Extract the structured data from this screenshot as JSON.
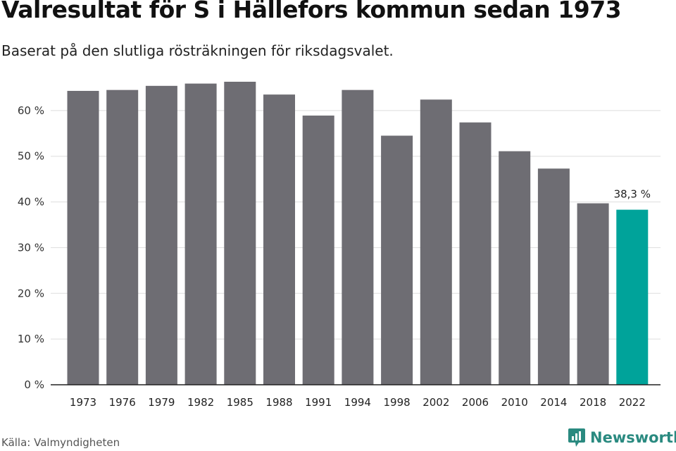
{
  "title": "Valresultat för S i Hällefors kommun sedan 1973",
  "subtitle": "Baserat på den slutliga rösträkningen för riksdagsvalet.",
  "source": "Källa: Valmyndigheten",
  "brand": "Newsworthy",
  "colors": {
    "bar": "#6e6d73",
    "highlight": "#00a39a",
    "grid": "#dddddd",
    "axis": "#222222",
    "brand": "#2a8a80"
  },
  "chart_data": {
    "type": "bar",
    "categories": [
      "1973",
      "1976",
      "1979",
      "1982",
      "1985",
      "1988",
      "1991",
      "1994",
      "1998",
      "2002",
      "2006",
      "2010",
      "2014",
      "2018",
      "2022"
    ],
    "values": [
      64.3,
      64.5,
      65.4,
      65.9,
      66.3,
      63.5,
      58.9,
      64.5,
      54.5,
      62.4,
      57.4,
      51.1,
      47.3,
      39.7,
      38.3
    ],
    "highlight_index": 14,
    "data_labels": [
      {
        "index": 14,
        "text": "38,3 %"
      }
    ],
    "y_ticks": [
      0,
      10,
      20,
      30,
      40,
      50,
      60
    ],
    "y_tick_labels": [
      "0 %",
      "10 %",
      "20 %",
      "30 %",
      "40 %",
      "50 %",
      "60 %"
    ],
    "ylim": [
      0,
      70
    ],
    "xlabel": "",
    "ylabel": "",
    "grid": true
  }
}
